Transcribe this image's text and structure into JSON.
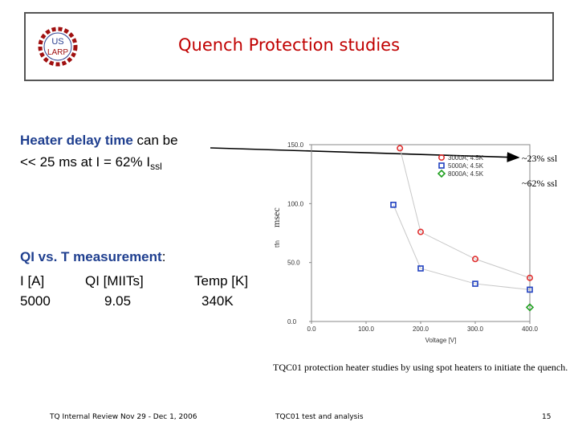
{
  "header": {
    "title": "Quench Protection studies",
    "logo_text": [
      "US",
      "LARP"
    ]
  },
  "text": {
    "heater_line1_part1": "Heater delay time",
    "heater_line1_part2": " can be",
    "heater_line2_main": "<< 25 ms at I = 62% I",
    "heater_line2_sub": "ssl",
    "qi_heading": "QI vs. T measurement",
    "qi_colon": ":",
    "table_headers": [
      "I [A]",
      "QI [MIITs]",
      "Temp [K]"
    ],
    "table_values": [
      "5000",
      "9.05",
      "340K"
    ]
  },
  "annotations": {
    "ssl23": "~23% ssl",
    "ssl62": "~62% ssl"
  },
  "caption": "TQC01 protection heater studies by  using spot heaters to initiate the quench.",
  "footer": {
    "left": "TQ Internal Review Nov 29 - Dec 1, 2006",
    "center": "TQC01 test and analysis",
    "page": "15"
  },
  "chart_data": {
    "type": "scatter",
    "xlabel": "Voltage [V]",
    "ylabel_small": "tfn",
    "ylabel_big": "msec",
    "xlim": [
      0,
      400
    ],
    "ylim": [
      0,
      150
    ],
    "xticks": [
      "0.0",
      "100.0",
      "200.0",
      "300.0",
      "400.0"
    ],
    "yticks": [
      "0.0",
      "50.0",
      "100.0",
      "150.0"
    ],
    "legend_position": "top-right",
    "series": [
      {
        "name": "3000A; 4.5K",
        "marker": "circle",
        "color": "#e03030",
        "x": [
          162,
          200,
          300,
          400
        ],
        "y": [
          147,
          76,
          53,
          37
        ]
      },
      {
        "name": "5000A; 4.5K",
        "marker": "square",
        "color": "#2040c0",
        "x": [
          150,
          200,
          300,
          400
        ],
        "y": [
          99,
          45,
          32,
          27
        ]
      },
      {
        "name": "8000A; 4.5K",
        "marker": "diamond",
        "color": "#20a020",
        "x": [
          400
        ],
        "y": [
          12
        ]
      }
    ]
  }
}
